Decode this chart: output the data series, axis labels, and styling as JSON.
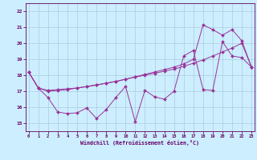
{
  "bg_color": "#cceeff",
  "grid_color": "#aaccdd",
  "line_color": "#993399",
  "xlabel": "Windchill (Refroidissement éolien,°C)",
  "xlim": [
    -0.3,
    23.3
  ],
  "ylim": [
    14.5,
    22.5
  ],
  "yticks": [
    15,
    16,
    17,
    18,
    19,
    20,
    21,
    22
  ],
  "xticks": [
    0,
    1,
    2,
    3,
    4,
    5,
    6,
    7,
    8,
    9,
    10,
    11,
    12,
    13,
    14,
    15,
    16,
    17,
    18,
    19,
    20,
    21,
    22,
    23
  ],
  "line1_x": [
    0,
    1,
    2,
    3,
    4,
    5,
    6,
    7,
    8,
    9,
    10,
    11,
    12,
    13,
    14,
    15,
    16,
    17,
    18,
    19,
    20,
    21,
    22,
    23
  ],
  "line1_y": [
    18.2,
    17.2,
    16.6,
    15.7,
    15.6,
    15.65,
    15.95,
    15.3,
    15.85,
    16.6,
    17.3,
    15.1,
    17.05,
    16.65,
    16.5,
    17.0,
    19.2,
    19.55,
    17.1,
    17.05,
    20.1,
    19.2,
    19.1,
    18.5
  ],
  "line2_x": [
    0,
    1,
    2,
    3,
    4,
    5,
    6,
    7,
    8,
    9,
    10,
    11,
    12,
    13,
    14,
    15,
    16,
    17,
    18,
    19,
    20,
    21,
    22,
    23
  ],
  "line2_y": [
    18.2,
    17.2,
    17.0,
    17.05,
    17.1,
    17.2,
    17.3,
    17.4,
    17.5,
    17.6,
    17.75,
    17.9,
    18.05,
    18.2,
    18.35,
    18.5,
    18.7,
    19.0,
    21.15,
    20.85,
    20.5,
    20.85,
    20.15,
    18.5
  ],
  "line3_x": [
    0,
    1,
    2,
    3,
    4,
    5,
    6,
    7,
    8,
    9,
    10,
    11,
    12,
    13,
    14,
    15,
    16,
    17,
    18,
    19,
    20,
    21,
    22,
    23
  ],
  "line3_y": [
    18.2,
    17.2,
    17.05,
    17.1,
    17.15,
    17.2,
    17.28,
    17.38,
    17.5,
    17.62,
    17.75,
    17.88,
    18.0,
    18.12,
    18.25,
    18.38,
    18.55,
    18.75,
    18.95,
    19.2,
    19.45,
    19.7,
    20.0,
    18.5
  ]
}
